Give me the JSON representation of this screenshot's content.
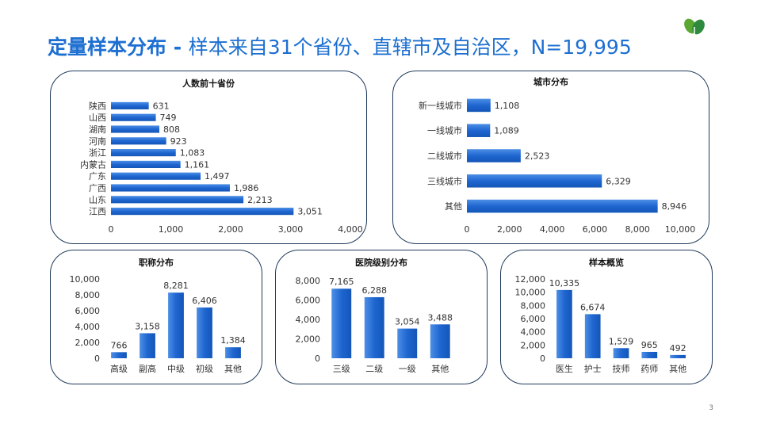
{
  "header": {
    "title_main": "定量样本分布 - ",
    "title_rest": "样本来自31个省份、直辖市及自治区，N=19,995"
  },
  "page_number": "3",
  "colors": {
    "accent": "#1d6fd1",
    "bar": "#1f66d0",
    "border": "#1f3a5a"
  },
  "chart_data": [
    {
      "id": "provinces",
      "type": "bar",
      "orientation": "horizontal",
      "title": "人数前十省份",
      "categories": [
        "陕西",
        "山西",
        "湖南",
        "河南",
        "浙江",
        "内蒙古",
        "广东",
        "广西",
        "山东",
        "江西"
      ],
      "values": [
        631,
        749,
        808,
        923,
        1083,
        1161,
        1497,
        1986,
        2213,
        3051
      ],
      "labels": [
        "631",
        "749",
        "808",
        "923",
        "1,083",
        "1,161",
        "1,497",
        "1,986",
        "2,213",
        "3,051"
      ],
      "xlim": [
        0,
        4000
      ],
      "ticks": [
        "0",
        "1,000",
        "2,000",
        "3,000",
        "4,000"
      ],
      "legend": "none"
    },
    {
      "id": "cities",
      "type": "bar",
      "orientation": "horizontal",
      "title": "城市分布",
      "categories": [
        "新一线城市",
        "一线城市",
        "二线城市",
        "三线城市",
        "其他"
      ],
      "values": [
        1108,
        1089,
        2523,
        6329,
        8946
      ],
      "labels": [
        "1,108",
        "1,089",
        "2,523",
        "6,329",
        "8,946"
      ],
      "xlim": [
        0,
        10000
      ],
      "ticks": [
        "0",
        "2,000",
        "4,000",
        "6,000",
        "8,000",
        "10,000"
      ],
      "legend": "none"
    },
    {
      "id": "titles",
      "type": "bar",
      "orientation": "vertical",
      "title": "职称分布",
      "categories": [
        "高级",
        "副高",
        "中级",
        "初级",
        "其他"
      ],
      "values": [
        766,
        3158,
        8281,
        6406,
        1384
      ],
      "labels": [
        "766",
        "3,158",
        "8,281",
        "6,406",
        "1,384"
      ],
      "ylim": [
        0,
        10000
      ],
      "ticks": [
        "0",
        "2,000",
        "4,000",
        "6,000",
        "8,000",
        "10,000"
      ],
      "legend": "none"
    },
    {
      "id": "hospitals",
      "type": "bar",
      "orientation": "vertical",
      "title": "医院级别分布",
      "categories": [
        "三级",
        "二级",
        "一级",
        "其他"
      ],
      "values": [
        7165,
        6288,
        3054,
        3488
      ],
      "labels": [
        "7,165",
        "6,288",
        "3,054",
        "3,488"
      ],
      "ylim": [
        0,
        8000
      ],
      "ticks": [
        "0",
        "2,000",
        "4,000",
        "6,000",
        "8,000"
      ],
      "legend": "none"
    },
    {
      "id": "samples",
      "type": "bar",
      "orientation": "vertical",
      "title": "样本概览",
      "categories": [
        "医生",
        "护士",
        "技师",
        "药师",
        "其他"
      ],
      "values": [
        10335,
        6674,
        1529,
        965,
        492
      ],
      "labels": [
        "10,335",
        "6,674",
        "1,529",
        "965",
        "492"
      ],
      "ylim": [
        0,
        12000
      ],
      "ticks": [
        "0",
        "2,000",
        "4,000",
        "6,000",
        "8,000",
        "10,000",
        "12,000"
      ],
      "legend": "none"
    }
  ]
}
